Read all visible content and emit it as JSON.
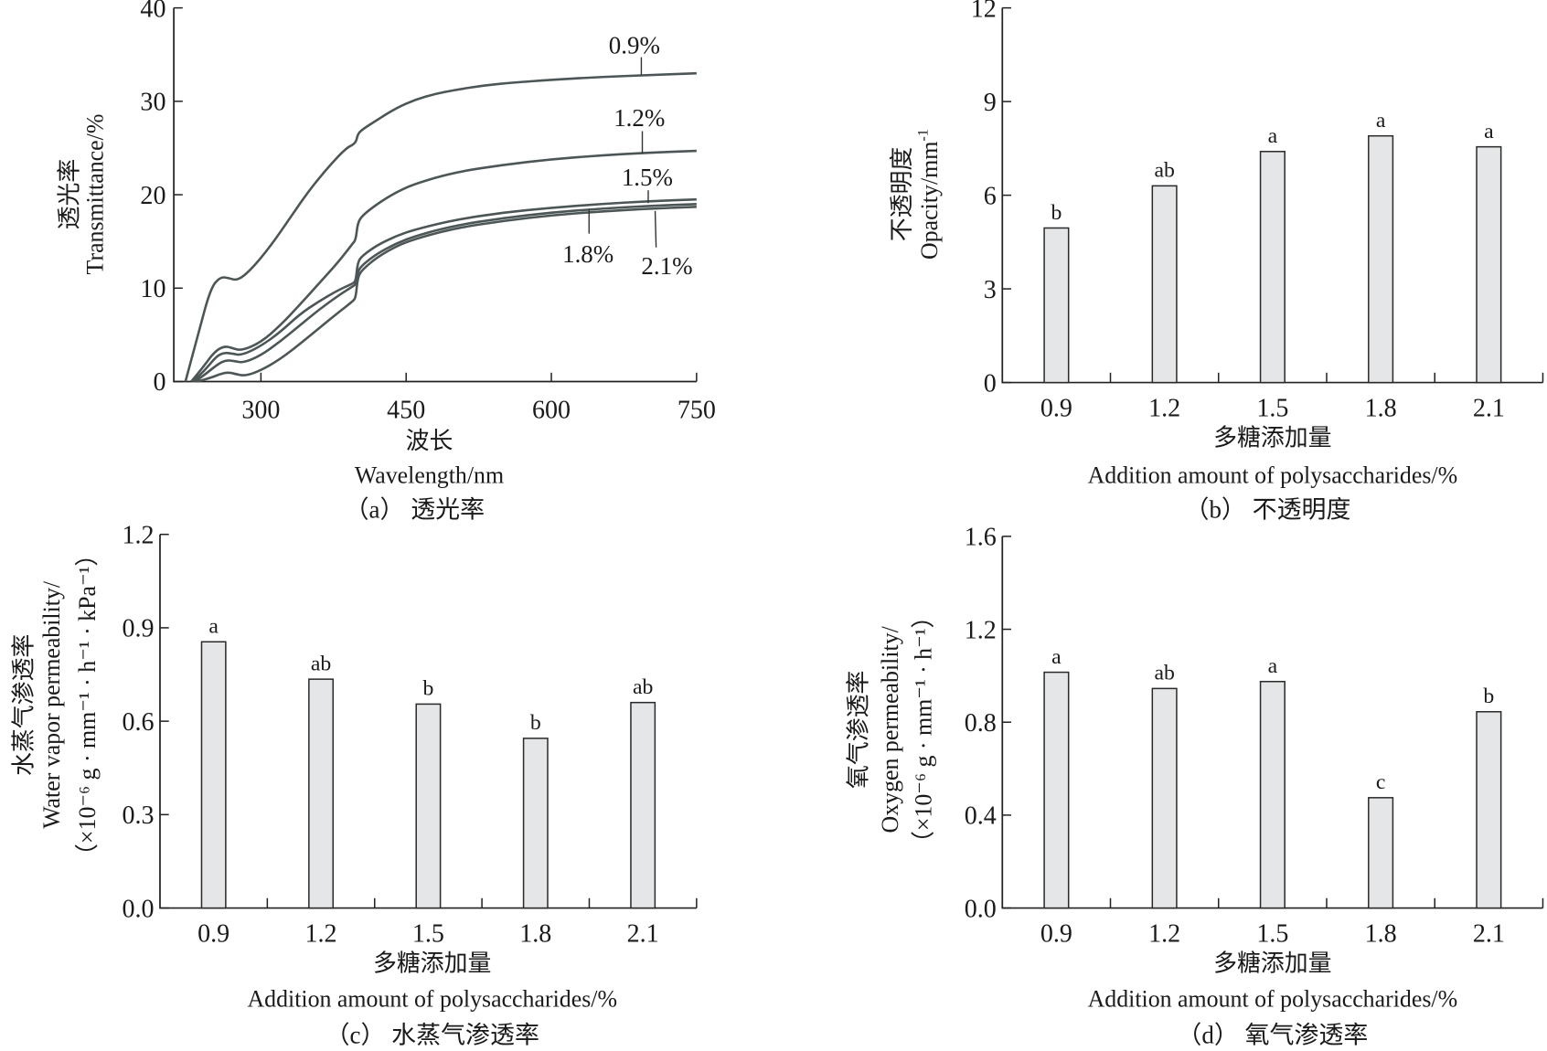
{
  "chart_data": [
    {
      "id": "a",
      "type": "line",
      "caption": "（a） 透光率",
      "xlabel_cn": "波长",
      "xlabel": "Wavelength/nm",
      "ylabel_cn": "透光率",
      "ylabel": "Transmittance/%",
      "xlim": [
        210,
        750
      ],
      "ylim": [
        0,
        40
      ],
      "xticks": [
        300,
        450,
        600,
        750
      ],
      "yticks": [
        0,
        10,
        20,
        30,
        40
      ],
      "grid": false,
      "series": [
        {
          "name": "0.9%",
          "x": [
            222,
            235,
            248,
            258,
            266,
            276,
            290,
            310,
            330,
            350,
            370,
            388,
            398,
            400,
            405,
            420,
            440,
            460,
            480,
            500,
            530,
            560,
            600,
            650,
            700,
            750
          ],
          "y": [
            0,
            5,
            10,
            11.2,
            11.1,
            10.8,
            12,
            14.5,
            17.5,
            20.5,
            23,
            25,
            25.5,
            26.5,
            27,
            28,
            29.3,
            30.2,
            30.8,
            31.2,
            31.7,
            32,
            32.3,
            32.6,
            32.8,
            33
          ]
        },
        {
          "name": "1.2%",
          "x": [
            228,
            240,
            252,
            262,
            270,
            280,
            300,
            320,
            340,
            360,
            380,
            395,
            398,
            400,
            405,
            420,
            440,
            460,
            500,
            550,
            600,
            650,
            700,
            750
          ],
          "y": [
            0,
            1.5,
            3.2,
            3.8,
            3.6,
            3.3,
            4.2,
            6,
            8.2,
            10.5,
            12.8,
            14.8,
            15.2,
            17,
            17.8,
            19,
            20.3,
            21.2,
            22.4,
            23.2,
            23.8,
            24.2,
            24.5,
            24.7
          ]
        },
        {
          "name": "1.5%",
          "x": [
            230,
            242,
            254,
            262,
            270,
            280,
            300,
            320,
            340,
            360,
            380,
            395,
            398,
            400,
            405,
            420,
            440,
            460,
            500,
            550,
            600,
            650,
            700,
            750
          ],
          "y": [
            0,
            1.2,
            2.7,
            3.1,
            3.0,
            2.8,
            3.8,
            5.3,
            7.2,
            8.6,
            9.8,
            10.5,
            10.8,
            12.8,
            13.5,
            14.6,
            15.6,
            16.3,
            17.3,
            18.1,
            18.6,
            19,
            19.3,
            19.5
          ]
        },
        {
          "name": "1.8%",
          "x": [
            232,
            244,
            256,
            264,
            272,
            282,
            300,
            320,
            340,
            360,
            380,
            395,
            398,
            400,
            405,
            420,
            440,
            460,
            500,
            550,
            600,
            650,
            700,
            750
          ],
          "y": [
            0,
            0.9,
            1.9,
            2.3,
            2.2,
            2.0,
            2.8,
            4.3,
            6.0,
            7.7,
            9.2,
            10.2,
            10.4,
            11.8,
            12.5,
            13.7,
            14.8,
            15.6,
            16.7,
            17.5,
            18.1,
            18.5,
            18.8,
            19
          ]
        },
        {
          "name": "2.1%",
          "x": [
            234,
            248,
            258,
            266,
            274,
            284,
            300,
            320,
            340,
            360,
            380,
            395,
            398,
            400,
            405,
            420,
            440,
            460,
            500,
            550,
            600,
            650,
            700,
            750
          ],
          "y": [
            0,
            0.4,
            0.8,
            1.0,
            0.8,
            0.6,
            1.2,
            2.4,
            4.0,
            5.7,
            7.4,
            8.6,
            9.0,
            11.2,
            12.0,
            13.3,
            14.5,
            15.3,
            16.4,
            17.2,
            17.8,
            18.2,
            18.5,
            18.7
          ]
        }
      ],
      "annotations": [
        {
          "text": "0.9%",
          "series": "0.9%"
        },
        {
          "text": "1.2%",
          "series": "1.2%"
        },
        {
          "text": "1.5%",
          "series": "1.5%"
        },
        {
          "text": "1.8%",
          "series": "1.8%"
        },
        {
          "text": "2.1%",
          "series": "2.1%"
        }
      ]
    },
    {
      "id": "b",
      "type": "bar",
      "caption": "（b） 不透明度",
      "xlabel_cn": "多糖添加量",
      "xlabel": "Addition amount of polysaccharides/%",
      "ylabel_cn": "不透明度",
      "ylabel": "Opacity/mm",
      "ylabel_sup": "-1",
      "categories": [
        "0.9",
        "1.2",
        "1.5",
        "1.8",
        "2.1"
      ],
      "values": [
        4.95,
        6.3,
        7.4,
        7.9,
        7.55
      ],
      "significance": [
        "b",
        "ab",
        "a",
        "a",
        "a"
      ],
      "ylim": [
        0,
        12
      ],
      "yticks": [
        "0",
        "3",
        "6",
        "9",
        "12"
      ],
      "grid": false
    },
    {
      "id": "c",
      "type": "bar",
      "caption": "（c） 水蒸气渗透率",
      "xlabel_cn": "多糖添加量",
      "xlabel": "Addition amount of polysaccharides/%",
      "ylabel_cn": "水蒸气渗透率",
      "ylabel": "Water vapor permeability/",
      "ylabel_unit": "（×10⁻⁶ g · mm⁻¹ · h⁻¹ · kPa⁻¹）",
      "categories": [
        "0.9",
        "1.2",
        "1.5",
        "1.8",
        "2.1"
      ],
      "values": [
        0.855,
        0.735,
        0.655,
        0.545,
        0.66
      ],
      "significance": [
        "a",
        "ab",
        "b",
        "b",
        "ab"
      ],
      "ylim": [
        0,
        1.2
      ],
      "yticks": [
        "0.0",
        "0.3",
        "0.6",
        "0.9",
        "1.2"
      ],
      "grid": false
    },
    {
      "id": "d",
      "type": "bar",
      "caption": "（d） 氧气渗透率",
      "xlabel_cn": "多糖添加量",
      "xlabel": "Addition amount of polysaccharides/%",
      "ylabel_cn": "氧气渗透率",
      "ylabel": "Oxygen permeability/",
      "ylabel_unit": "（×10⁻⁶ g · mm⁻¹ · h⁻¹）",
      "categories": [
        "0.9",
        "1.2",
        "1.5",
        "1.8",
        "2.1"
      ],
      "values": [
        1.015,
        0.945,
        0.975,
        0.475,
        0.845
      ],
      "significance": [
        "a",
        "ab",
        "a",
        "c",
        "b"
      ],
      "ylim": [
        0,
        1.6
      ],
      "yticks": [
        "0.0",
        "0.4",
        "0.8",
        "1.2",
        "1.6"
      ],
      "grid": false
    }
  ]
}
